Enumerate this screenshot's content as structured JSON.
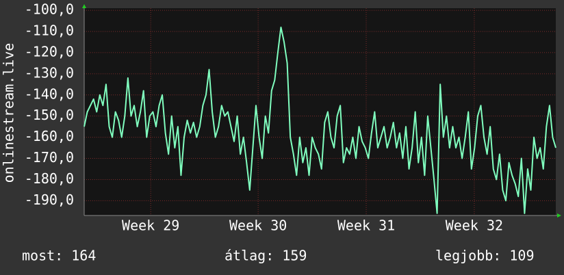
{
  "chart_data": {
    "type": "line",
    "y_label": "onlinestream.live",
    "color": "#80ffbf",
    "grid": true,
    "xlim": [
      0,
      151
    ],
    "ylim": [
      -197,
      -99
    ],
    "xticks": [
      {
        "value": 21.3,
        "label": "Week 29"
      },
      {
        "value": 55.7,
        "label": "Week 30"
      },
      {
        "value": 90.3,
        "label": "Week 31"
      },
      {
        "value": 124.9,
        "label": "Week 32"
      }
    ],
    "yticks": [
      {
        "value": -100,
        "label": "-100,0"
      },
      {
        "value": -110,
        "label": "-110,0"
      },
      {
        "value": -120,
        "label": "-120,0"
      },
      {
        "value": -130,
        "label": "-130,0"
      },
      {
        "value": -140,
        "label": "-140,0"
      },
      {
        "value": -150,
        "label": "-150,0"
      },
      {
        "value": -160,
        "label": "-160,0"
      },
      {
        "value": -170,
        "label": "-170,0"
      },
      {
        "value": -180,
        "label": "-180,0"
      },
      {
        "value": -190,
        "label": "-190,0"
      }
    ],
    "values": [
      -155,
      -148,
      -145,
      -142,
      -148,
      -140,
      -145,
      -135,
      -155,
      -160,
      -148,
      -152,
      -160,
      -150,
      -132,
      -150,
      -145,
      -155,
      -148,
      -138,
      -160,
      -150,
      -148,
      -155,
      -145,
      -140,
      -158,
      -168,
      -150,
      -165,
      -155,
      -178,
      -160,
      -152,
      -158,
      -153,
      -160,
      -155,
      -145,
      -140,
      -128,
      -148,
      -160,
      -155,
      -145,
      -150,
      -148,
      -155,
      -162,
      -150,
      -168,
      -160,
      -172,
      -185,
      -165,
      -145,
      -160,
      -170,
      -150,
      -158,
      -138,
      -133,
      -120,
      -108,
      -115,
      -125,
      -160,
      -168,
      -178,
      -160,
      -172,
      -165,
      -178,
      -160,
      -165,
      -168,
      -175,
      -153,
      -148,
      -160,
      -165,
      -150,
      -145,
      -172,
      -165,
      -168,
      -160,
      -170,
      -155,
      -162,
      -165,
      -170,
      -158,
      -148,
      -165,
      -160,
      -155,
      -165,
      -160,
      -153,
      -165,
      -158,
      -170,
      -155,
      -175,
      -165,
      -148,
      -172,
      -160,
      -178,
      -150,
      -165,
      -180,
      -196,
      -135,
      -160,
      -150,
      -165,
      -155,
      -165,
      -160,
      -170,
      -160,
      -148,
      -175,
      -165,
      -150,
      -145,
      -160,
      -168,
      -155,
      -175,
      -180,
      -168,
      -185,
      -190,
      -172,
      -178,
      -182,
      -188,
      -170,
      -196,
      -175,
      -185,
      -160,
      -170,
      -165,
      -175,
      -155,
      -145,
      -160,
      -165
    ],
    "stats": [
      "most: 164",
      "átlag: 159",
      "legjobb: 109"
    ]
  }
}
